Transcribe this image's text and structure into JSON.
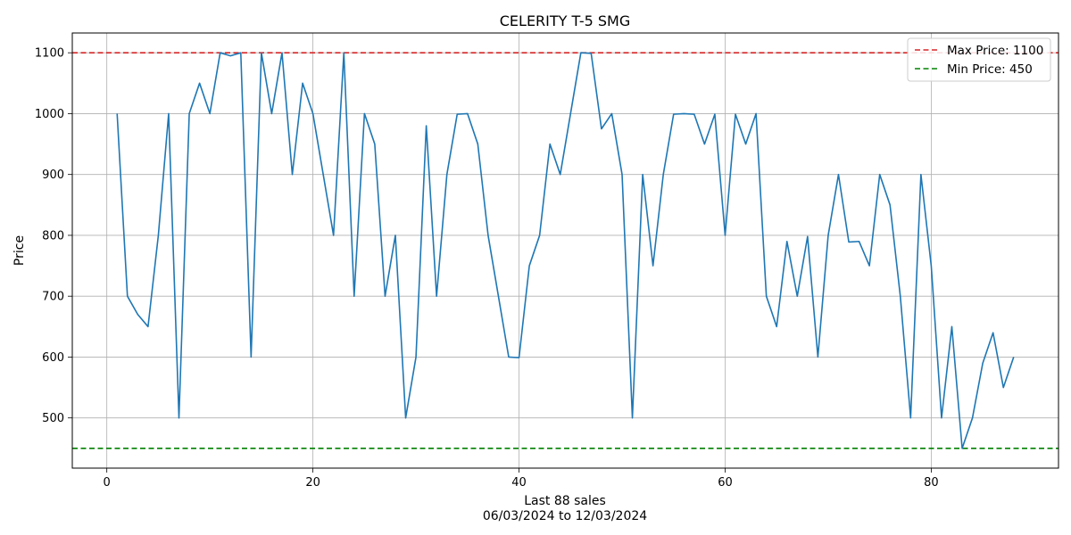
{
  "chart_data": {
    "type": "line",
    "title": "CELERITY T-5 SMG",
    "xlabel": "Last 88 sales",
    "xlabel_sub": "06/03/2024 to 12/03/2024",
    "ylabel": "Price",
    "xlim": [
      -3.35,
      92.35
    ],
    "ylim": [
      417.5,
      1132.5
    ],
    "xticks": [
      0,
      20,
      40,
      60,
      80
    ],
    "yticks": [
      500,
      600,
      700,
      800,
      900,
      1000,
      1100
    ],
    "grid": true,
    "legend_position": "top-right",
    "series": [
      {
        "color": "#1f77b4",
        "x": [
          1,
          2,
          3,
          4,
          5,
          6,
          7,
          8,
          9,
          10,
          11,
          12,
          13,
          14,
          15,
          16,
          17,
          18,
          19,
          20,
          21,
          22,
          23,
          24,
          25,
          26,
          27,
          28,
          29,
          30,
          31,
          32,
          33,
          34,
          35,
          36,
          37,
          38,
          39,
          40,
          41,
          42,
          43,
          44,
          45,
          46,
          47,
          48,
          49,
          50,
          51,
          52,
          53,
          54,
          55,
          56,
          57,
          58,
          59,
          60,
          61,
          62,
          63,
          64,
          65,
          66,
          67,
          68,
          69,
          70,
          71,
          72,
          73,
          74,
          75,
          76,
          77,
          78,
          79,
          80,
          81,
          82,
          83,
          84,
          85,
          86,
          87,
          88
        ],
        "values": [
          1000,
          700,
          670,
          650,
          800,
          1000,
          500,
          1000,
          1050,
          1000,
          1100,
          1095,
          1100,
          600,
          1100,
          1000,
          1100,
          900,
          1050,
          1000,
          900,
          800,
          1100,
          700,
          1000,
          950,
          700,
          800,
          500,
          600,
          980,
          700,
          900,
          999,
          1000,
          950,
          800,
          700,
          600,
          599,
          750,
          800,
          950,
          900,
          1000,
          1100,
          1099,
          975,
          1000,
          900,
          500,
          900,
          750,
          900,
          999,
          1000,
          999,
          950,
          999,
          800,
          999,
          950,
          1000,
          700,
          650,
          790,
          700,
          798,
          600,
          800,
          900,
          789,
          790,
          750,
          900,
          850,
          700,
          500,
          900,
          750,
          500,
          650,
          450,
          500,
          590,
          640,
          550,
          600
        ]
      }
    ],
    "reference_lines": [
      {
        "name": "Max Price: 1100",
        "value": 1100,
        "color": "#d62728"
      },
      {
        "name": "Min Price: 450",
        "value": 450,
        "color": "#008000"
      }
    ]
  }
}
